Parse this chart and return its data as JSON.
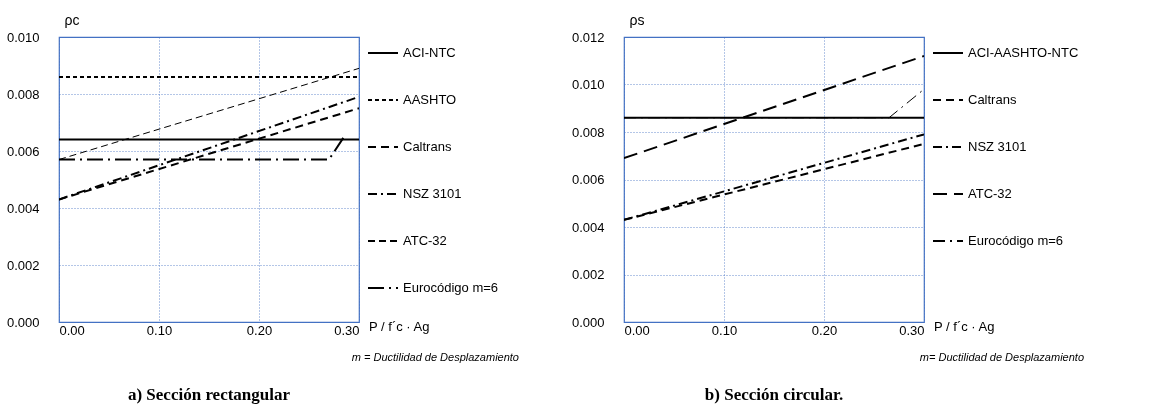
{
  "chart_data": [
    {
      "type": "line",
      "title": "a)    Sección rectangular",
      "xlabel": "P / f´c · Ag",
      "ylabel": "ρc",
      "annotations": [
        "m = Ductilidad de Desplazamiento"
      ],
      "xlim": [
        0,
        0.3
      ],
      "ylim": [
        0,
        0.01
      ],
      "xticks": [
        {
          "value": 0,
          "label": "0.00"
        },
        {
          "value": 0.1,
          "label": "0.10"
        },
        {
          "value": 0.2,
          "label": "0.20"
        },
        {
          "value": 0.3,
          "label": "0.30"
        }
      ],
      "yticks": [
        {
          "value": 0,
          "label": "0.000"
        },
        {
          "value": 0.002,
          "label": "0.002"
        },
        {
          "value": 0.004,
          "label": "0.004"
        },
        {
          "value": 0.006,
          "label": "0.006"
        },
        {
          "value": 0.008,
          "label": "0.008"
        },
        {
          "value": 0.01,
          "label": "0.010"
        }
      ],
      "grid": true,
      "legend": "right",
      "series": [
        {
          "name": "ACI-NTC",
          "color": "#000000",
          "line_style": "solid",
          "x": [
            0,
            0.3
          ],
          "values": [
            0.0064,
            0.0064
          ]
        },
        {
          "name": "AASHTO",
          "color": "#000000",
          "line_style": "shortdash",
          "x": [
            0,
            0.3
          ],
          "values": [
            0.0086,
            0.0086
          ]
        },
        {
          "name": "Caltrans",
          "color": "#000000",
          "line_style": "dashed",
          "x": [
            0,
            0.3
          ],
          "values": [
            0.0043,
            0.0075
          ]
        },
        {
          "name": "NSZ 3101",
          "color": "#000000",
          "line_style": "dashdot",
          "x": [
            0,
            0.3
          ],
          "values": [
            0.0043,
            0.0079
          ]
        },
        {
          "name": "ATC-32",
          "color": "#000000",
          "line_style": "thindash",
          "x": [
            0,
            0.3
          ],
          "values": [
            0.0057,
            0.0089
          ]
        },
        {
          "name": "Eurocódigo m=6",
          "color": "#000000",
          "line_style": "longdashdot",
          "x": [
            0,
            0.27,
            0.285
          ],
          "values": [
            0.0057,
            0.0057,
            0.0065
          ]
        }
      ]
    },
    {
      "type": "line",
      "title": "b)    Sección circular.",
      "xlabel": "P / f´c · Ag",
      "ylabel": "ρs",
      "annotations": [
        "m= Ductilidad de Desplazamiento"
      ],
      "xlim": [
        0,
        0.3
      ],
      "ylim": [
        0,
        0.012
      ],
      "xticks": [
        {
          "value": 0,
          "label": "0.00"
        },
        {
          "value": 0.1,
          "label": "0.10"
        },
        {
          "value": 0.2,
          "label": "0.20"
        },
        {
          "value": 0.3,
          "label": "0.30"
        }
      ],
      "yticks": [
        {
          "value": 0,
          "label": "0.000"
        },
        {
          "value": 0.002,
          "label": "0.002"
        },
        {
          "value": 0.004,
          "label": "0.004"
        },
        {
          "value": 0.006,
          "label": "0.006"
        },
        {
          "value": 0.008,
          "label": "0.008"
        },
        {
          "value": 0.01,
          "label": "0.010"
        },
        {
          "value": 0.012,
          "label": "0.012"
        }
      ],
      "grid": true,
      "legend": "right",
      "series": [
        {
          "name": "ACI-AASHTO-NTC",
          "color": "#000000",
          "line_style": "solid",
          "x": [
            0,
            0.3
          ],
          "values": [
            0.0086,
            0.0086
          ]
        },
        {
          "name": "Caltrans",
          "color": "#000000",
          "line_style": "dashed",
          "x": [
            0,
            0.3
          ],
          "values": [
            0.0043,
            0.0075
          ]
        },
        {
          "name": "NSZ 3101",
          "color": "#000000",
          "line_style": "dashdot",
          "x": [
            0,
            0.3
          ],
          "values": [
            0.0043,
            0.0079
          ]
        },
        {
          "name": "ATC-32",
          "color": "#000000",
          "line_style": "longdash",
          "x": [
            0,
            0.3
          ],
          "values": [
            0.0069,
            0.0112
          ]
        },
        {
          "name": "Eurocódigo m=6",
          "color": "#000000",
          "line_style": "thindashdot",
          "x": [
            0,
            0.265,
            0.3
          ],
          "values": [
            0.0086,
            0.0086,
            0.0098
          ]
        }
      ]
    }
  ]
}
